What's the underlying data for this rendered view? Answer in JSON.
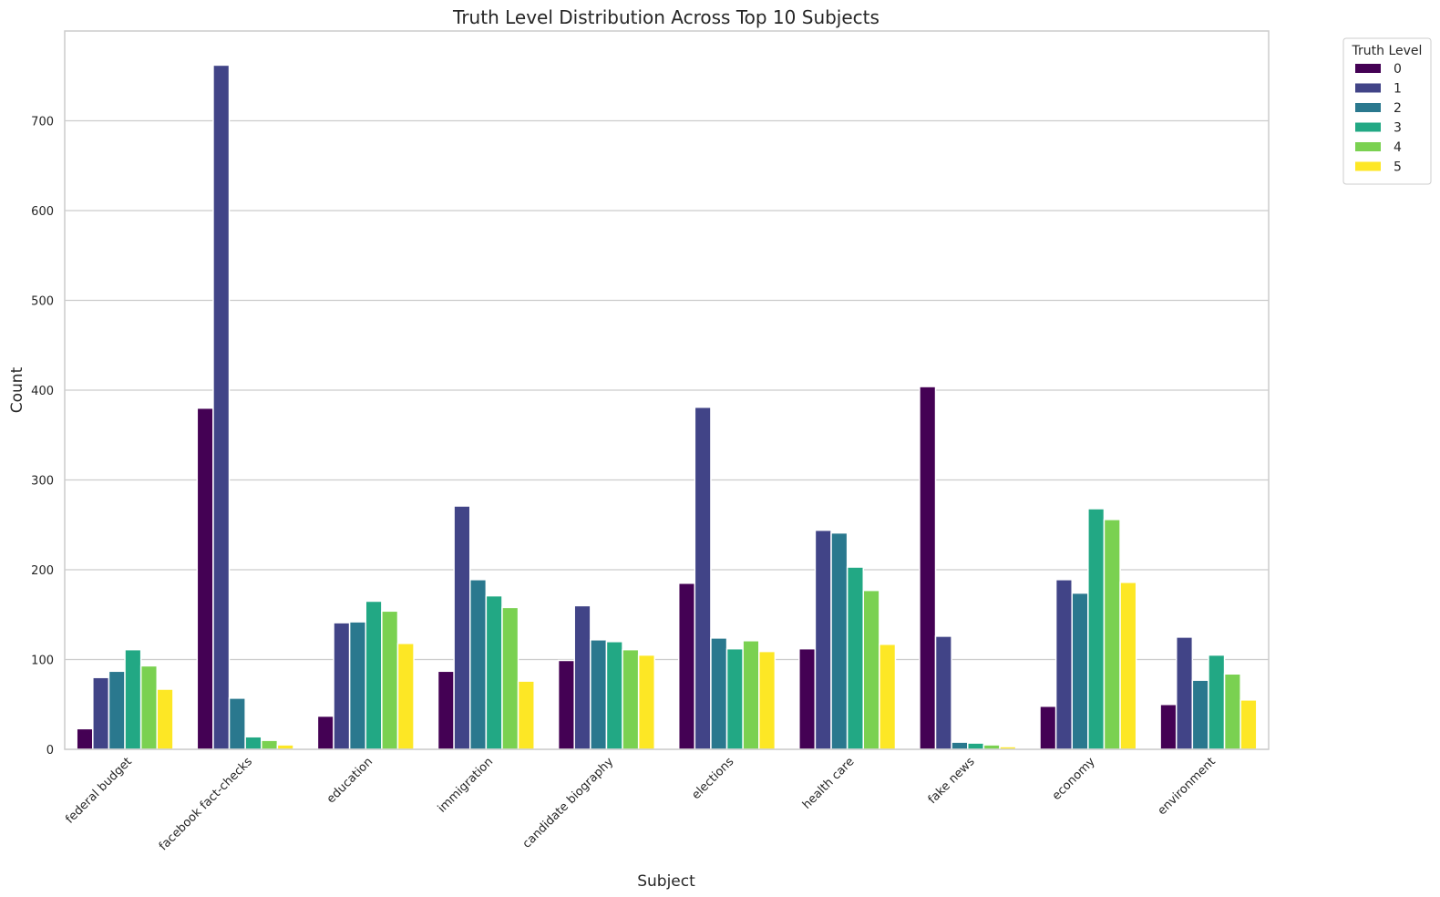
{
  "chart_data": {
    "type": "bar",
    "title": "Truth Level Distribution Across Top 10 Subjects",
    "xlabel": "Subject",
    "ylabel": "Count",
    "ylim": [
      0,
      800
    ],
    "yticks": [
      0,
      100,
      200,
      300,
      400,
      500,
      600,
      700
    ],
    "grid": "horizontal",
    "legend_title": "Truth Level",
    "legend_position": "outside top-right",
    "categories": [
      "federal budget",
      "facebook fact-checks",
      "education",
      "immigration",
      "candidate biography",
      "elections",
      "health care",
      "fake news",
      "economy",
      "environment"
    ],
    "series": [
      {
        "name": "0",
        "color": "#440154",
        "values": [
          23,
          380,
          37,
          87,
          99,
          185,
          112,
          404,
          48,
          50
        ]
      },
      {
        "name": "1",
        "color": "#414487",
        "values": [
          80,
          762,
          141,
          271,
          160,
          381,
          244,
          126,
          189,
          125
        ]
      },
      {
        "name": "2",
        "color": "#2a788e",
        "values": [
          87,
          57,
          142,
          189,
          122,
          124,
          241,
          8,
          174,
          77
        ]
      },
      {
        "name": "3",
        "color": "#22a884",
        "values": [
          111,
          14,
          165,
          171,
          120,
          112,
          203,
          7,
          268,
          105
        ]
      },
      {
        "name": "4",
        "color": "#7ad151",
        "values": [
          93,
          10,
          154,
          158,
          111,
          121,
          177,
          5,
          256,
          84
        ]
      },
      {
        "name": "5",
        "color": "#fde725",
        "values": [
          67,
          5,
          118,
          76,
          105,
          109,
          117,
          3,
          186,
          55
        ]
      }
    ]
  }
}
